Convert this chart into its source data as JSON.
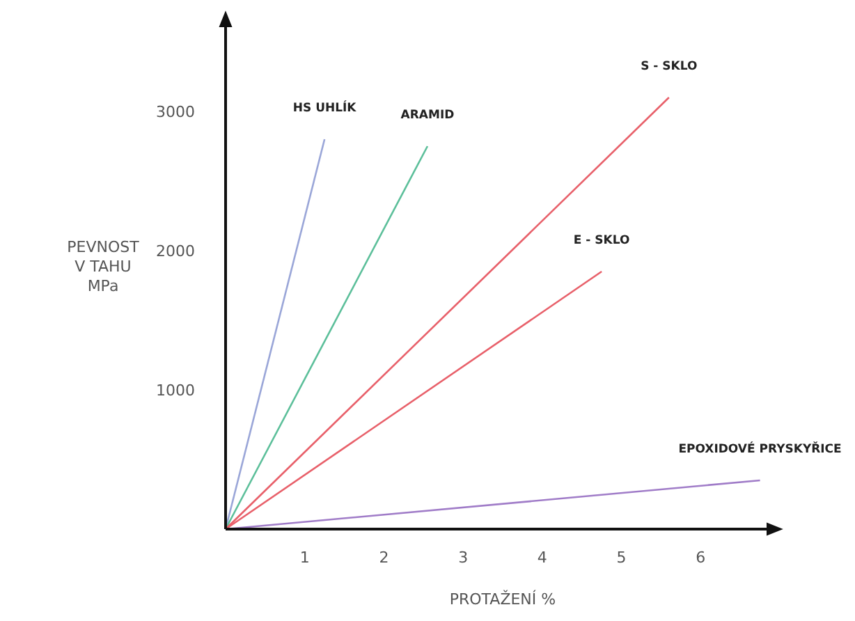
{
  "chart_data": {
    "type": "line",
    "xlabel": "PROTAŽENÍ %",
    "ylabel": "PEVNOST\nV TAHU\nMPa",
    "xlim": [
      0,
      7
    ],
    "ylim": [
      0,
      3700
    ],
    "xticks": [
      1,
      2,
      3,
      4,
      5,
      6
    ],
    "yticks": [
      1000,
      2000,
      3000
    ],
    "grid": false,
    "marker": "none",
    "line_style": "solid",
    "series": [
      {
        "name": "HS UHLÍK",
        "color": "#9aa6d8",
        "x": [
          0,
          1.25
        ],
        "values": [
          0,
          2800
        ]
      },
      {
        "name": "ARAMID",
        "color": "#5cbf9a",
        "x": [
          0,
          2.55
        ],
        "values": [
          0,
          2750
        ]
      },
      {
        "name": "S - SKLO",
        "color": "#e8606a",
        "x": [
          0,
          5.6
        ],
        "values": [
          0,
          3100
        ]
      },
      {
        "name": "E - SKLO",
        "color": "#e8606a",
        "x": [
          0,
          4.75
        ],
        "values": [
          0,
          1850
        ]
      },
      {
        "name": "EPOXIDOVÉ PRYSKYŘICE",
        "color": "#a07cc8",
        "x": [
          0,
          6.75
        ],
        "values": [
          0,
          350
        ]
      }
    ]
  }
}
